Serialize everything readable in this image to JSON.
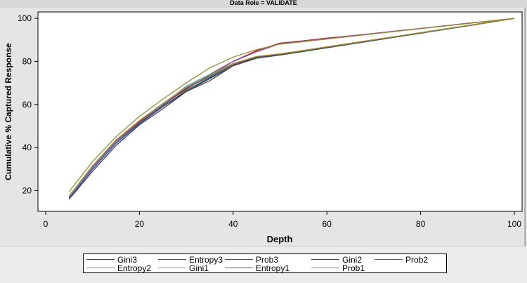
{
  "window": {
    "title": "Data Role = VALIDATE"
  },
  "chart_data": {
    "type": "line",
    "title": "Data Role = VALIDATE",
    "xlabel": "Depth",
    "ylabel": "Cumulative % Captured Response",
    "xlim": [
      0,
      100
    ],
    "ylim": [
      12,
      102
    ],
    "xticks": [
      0,
      20,
      40,
      60,
      80,
      100
    ],
    "yticks": [
      20,
      40,
      60,
      80,
      100
    ],
    "x": [
      5,
      10,
      15,
      20,
      25,
      30,
      35,
      40,
      45,
      50,
      55,
      60,
      65,
      70,
      75,
      80,
      85,
      90,
      95,
      100
    ],
    "grid": false,
    "legend_position": "bottom",
    "series": [
      {
        "name": "Gini3",
        "color": "#2e3a8c",
        "values": [
          16,
          29,
          41,
          50.5,
          58,
          66,
          72,
          78,
          81.5,
          83,
          84.7,
          86.4,
          88.1,
          89.8,
          91.5,
          93.2,
          94.9,
          96.6,
          98.3,
          100
        ]
      },
      {
        "name": "Entropy3",
        "color": "#b22a2a",
        "values": [
          17,
          31,
          43,
          52,
          60,
          67,
          74,
          80,
          85,
          88.5,
          89.6,
          90.8,
          91.9,
          93.0,
          94.2,
          95.3,
          96.5,
          97.7,
          98.8,
          100
        ]
      },
      {
        "name": "Prob3",
        "color": "#1c6b4e",
        "values": [
          16.5,
          30,
          42,
          51,
          59,
          66.5,
          72.5,
          78,
          81.5,
          83,
          84.6,
          86.3,
          88.0,
          89.7,
          91.4,
          93.1,
          94.8,
          96.5,
          98.2,
          100
        ]
      },
      {
        "name": "Gini2",
        "color": "#5a4030",
        "values": [
          16.8,
          30.5,
          42.5,
          51.5,
          59,
          66,
          71,
          78,
          81.8,
          83.2,
          84.9,
          86.6,
          88.2,
          89.9,
          91.6,
          93.3,
          95.0,
          96.6,
          98.3,
          100
        ]
      },
      {
        "name": "Prob2",
        "color": "#8a45a8",
        "values": [
          17,
          31,
          43,
          52.5,
          60,
          67.5,
          73.5,
          80,
          84.5,
          88.2,
          89.4,
          90.6,
          91.8,
          93.0,
          94.1,
          95.3,
          96.5,
          97.6,
          98.8,
          100
        ]
      },
      {
        "name": "Entropy2",
        "color": "#8f8f32",
        "values": [
          19.5,
          33.5,
          45,
          54.5,
          62.5,
          70,
          77,
          82,
          85.5,
          88,
          89.2,
          90.4,
          91.6,
          92.8,
          94.0,
          95.2,
          96.4,
          97.6,
          98.8,
          100
        ]
      },
      {
        "name": "Gini1",
        "color": "#4aa8c0",
        "values": [
          17,
          30.5,
          42.5,
          51.5,
          60,
          68.5,
          74,
          79,
          82,
          83.4,
          85.0,
          86.7,
          88.4,
          90.0,
          91.7,
          93.3,
          95.0,
          96.7,
          98.3,
          100
        ]
      },
      {
        "name": "Entropy1",
        "color": "#6a3e8a",
        "values": [
          16.5,
          30,
          42,
          51.5,
          59.5,
          67.5,
          73,
          78.5,
          82,
          83.3,
          84.9,
          86.6,
          88.3,
          89.9,
          91.6,
          93.3,
          95.0,
          96.6,
          98.3,
          100
        ]
      },
      {
        "name": "Prob1",
        "color": "#a88a1e",
        "values": [
          17.5,
          31.5,
          43.5,
          52.5,
          60.5,
          68,
          73.5,
          79,
          82.3,
          83.5,
          85.1,
          86.8,
          88.4,
          90.1,
          91.7,
          93.4,
          95.0,
          96.7,
          98.3,
          100
        ]
      }
    ]
  }
}
